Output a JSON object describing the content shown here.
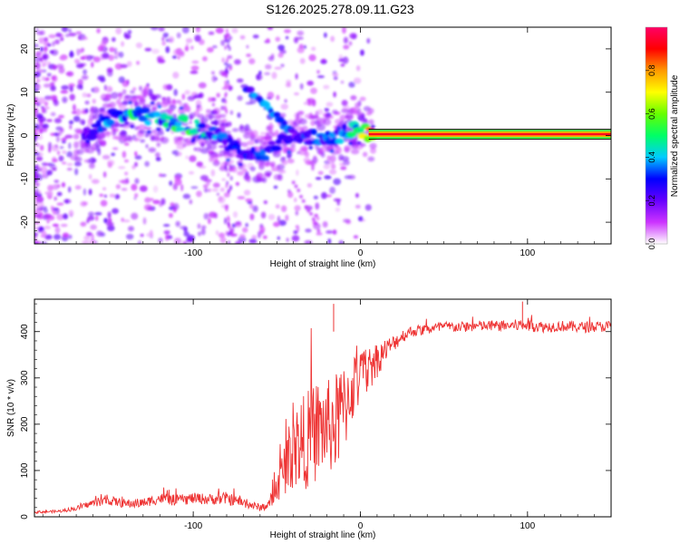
{
  "title": "S126.2025.278.09.11.G23",
  "chart_data": [
    {
      "type": "heatmap",
      "title": "S126.2025.278.09.11.G23",
      "xlabel": "Height of straight line (km)",
      "ylabel": "Frequency (Hz)",
      "xlim": [
        -195,
        150
      ],
      "ylim": [
        -25,
        25
      ],
      "xticks": [
        -100,
        0,
        100
      ],
      "xtick_labels": [
        "-100",
        "0",
        "100"
      ],
      "yticks": [
        -20,
        -10,
        0,
        10,
        20
      ],
      "ytick_labels": [
        "-20",
        "-10",
        "0",
        "10",
        "20"
      ],
      "colorbar": {
        "label": "Normalized spectral amplitude",
        "range": [
          0,
          1
        ],
        "ticks": [
          "0.0",
          "0.2",
          "0.4",
          "0.6",
          "0.8"
        ],
        "tick_values": [
          0,
          0.2,
          0.4,
          0.6,
          0.8
        ],
        "colors": [
          "#ffffff",
          "#cc33ff",
          "#6600ff",
          "#0000ff",
          "#00ccff",
          "#00ff66",
          "#66ff00",
          "#ffff00",
          "#ff9900",
          "#ff0000",
          "#ff0066"
        ]
      },
      "ridge": {
        "x": [
          -165,
          -150,
          -135,
          -125,
          -110,
          -100,
          -90,
          -80,
          -70,
          -60,
          -50,
          -40,
          -30,
          -20,
          -10,
          0,
          5,
          20,
          50,
          80,
          110,
          150
        ],
        "y": [
          0,
          4,
          5,
          4,
          3,
          2,
          1,
          -2,
          -4,
          -5,
          -2,
          0,
          -0.5,
          -1,
          0.5,
          1.5,
          0.5,
          0.3,
          0.3,
          0.3,
          0.3,
          0.3
        ],
        "amplitude": [
          0.25,
          0.35,
          0.45,
          0.4,
          0.45,
          0.5,
          0.4,
          0.3,
          0.25,
          0.3,
          0.3,
          0.25,
          0.3,
          0.35,
          0.4,
          0.45,
          0.9,
          0.95,
          0.9,
          0.9,
          0.9,
          0.9
        ]
      },
      "secondary_branch": {
        "x": [
          -68,
          -60,
          -52,
          -45,
          -40,
          -36
        ],
        "y": [
          11,
          8,
          5,
          2,
          0,
          -1
        ]
      }
    },
    {
      "type": "line",
      "xlabel": "Height of straight line (km)",
      "ylabel": "SNR (10 * v/v)",
      "xlim": [
        -195,
        150
      ],
      "ylim": [
        0,
        470
      ],
      "xticks": [
        -100,
        0,
        100
      ],
      "xtick_labels": [
        "-100",
        "0",
        "100"
      ],
      "yticks": [
        0,
        100,
        200,
        300,
        400
      ],
      "ytick_labels": [
        "0",
        "100",
        "200",
        "300",
        "400"
      ],
      "series": [
        {
          "name": "SNR",
          "color": "#ee3333",
          "x": [
            -195,
            -180,
            -170,
            -160,
            -150,
            -140,
            -130,
            -120,
            -110,
            -100,
            -90,
            -80,
            -70,
            -60,
            -55,
            -50,
            -45,
            -40,
            -35,
            -30,
            -25,
            -20,
            -15,
            -10,
            -5,
            0,
            5,
            10,
            15,
            20,
            25,
            30,
            40,
            50,
            60,
            70,
            80,
            90,
            100,
            110,
            120,
            130,
            140,
            150
          ],
          "y": [
            10,
            12,
            18,
            30,
            35,
            28,
            30,
            40,
            35,
            40,
            38,
            40,
            30,
            20,
            25,
            60,
            110,
            150,
            160,
            170,
            190,
            195,
            200,
            230,
            280,
            300,
            320,
            340,
            360,
            375,
            390,
            400,
            405,
            410,
            410,
            412,
            412,
            413,
            415,
            410,
            412,
            410,
            410,
            412
          ],
          "noise": [
            3,
            3,
            5,
            8,
            10,
            10,
            10,
            12,
            12,
            12,
            12,
            14,
            10,
            8,
            10,
            30,
            60,
            90,
            100,
            110,
            110,
            100,
            110,
            100,
            80,
            60,
            50,
            40,
            25,
            18,
            15,
            12,
            12,
            12,
            12,
            12,
            12,
            12,
            15,
            12,
            12,
            12,
            12,
            12
          ]
        }
      ],
      "annotations": [
        {
          "x": -16,
          "y": 460,
          "text": ""
        },
        {
          "x": 97,
          "y": 465,
          "text": ""
        }
      ]
    }
  ]
}
